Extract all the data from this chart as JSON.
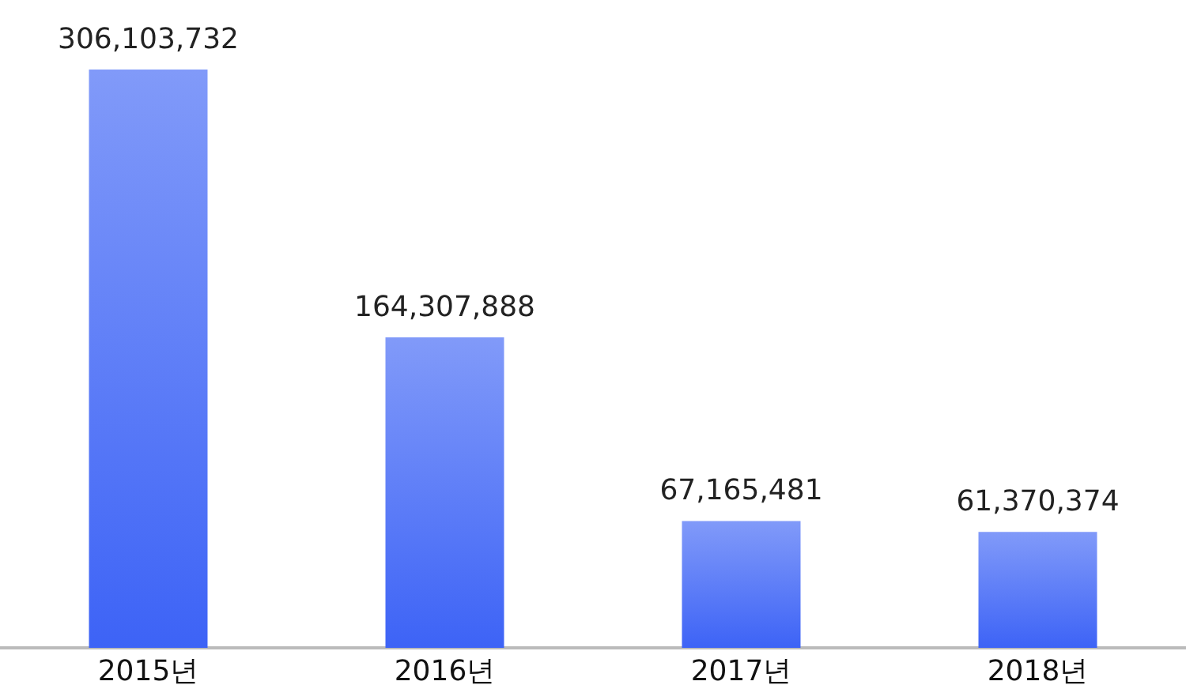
{
  "chart_data": {
    "type": "bar",
    "categories": [
      "2015년",
      "2016년",
      "2017년",
      "2018년"
    ],
    "values": [
      306103732,
      164307888,
      67165481,
      61370374
    ],
    "color": "#3d63f6",
    "value_labels": [
      "306,103,732",
      "164,307,888",
      "67,165,481",
      "61,370,374"
    ]
  }
}
